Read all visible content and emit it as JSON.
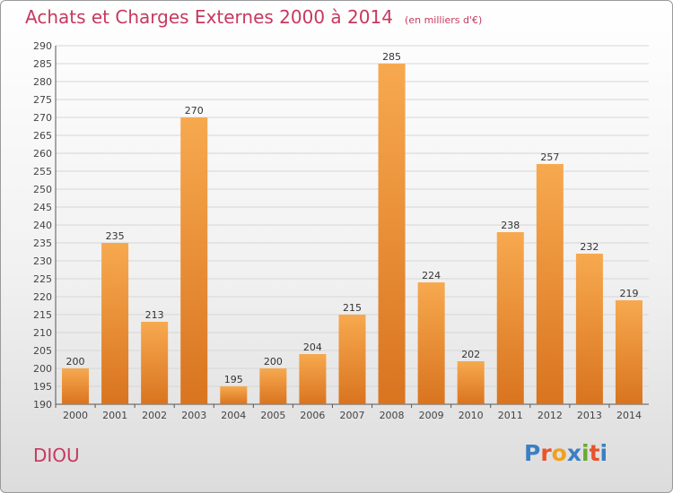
{
  "header": {
    "title": "Achats et Charges Externes 2000 à 2014",
    "unit": "(en milliers d'€)"
  },
  "commune": "DIOU",
  "logo": {
    "text": "Proxiti",
    "letters": [
      "P",
      "r",
      "o",
      "x",
      "i",
      "t",
      "i"
    ],
    "colors": [
      "#3b7fc4",
      "#e8532b",
      "#f0a020",
      "#3b7fc4",
      "#6aab2e",
      "#e8532b",
      "#3b7fc4"
    ]
  },
  "colors": {
    "accent": "#c8385f",
    "bar_top": "#f7a94f",
    "bar_bottom": "#d9741f",
    "grid": "#d6d6d6"
  },
  "chart_data": {
    "type": "bar",
    "title": "Achats et Charges Externes 2000 à 2014",
    "subtitle": "(en milliers d'€)",
    "categories": [
      "2000",
      "2001",
      "2002",
      "2003",
      "2004",
      "2005",
      "2006",
      "2007",
      "2008",
      "2009",
      "2010",
      "2011",
      "2012",
      "2013",
      "2014"
    ],
    "values": [
      200,
      235,
      213,
      270,
      195,
      200,
      204,
      215,
      285,
      224,
      202,
      238,
      257,
      232,
      219
    ],
    "ylim": [
      190,
      290
    ],
    "ytick_step": 5,
    "grid": true,
    "data_labels": true
  }
}
